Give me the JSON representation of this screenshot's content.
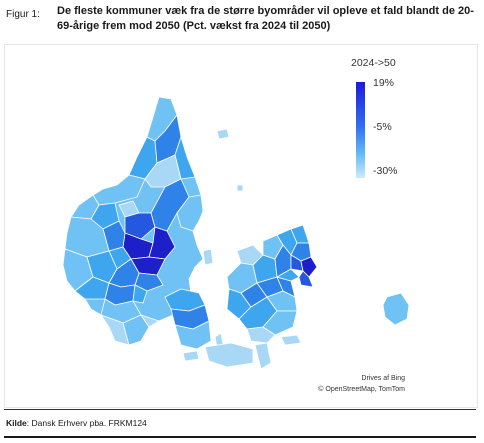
{
  "figure": {
    "label": "Figur 1:",
    "title": "De fleste kommuner væk fra de større byområder vil opleve et fald blandt de 20-69-årige frem mod 2050 (Pct. vækst fra 2024 til 2050)"
  },
  "legend": {
    "title": "2024->50",
    "max_label": "19%",
    "mid_label": "-5%",
    "min_label": "-30%",
    "scale_colors": [
      "#1d1ad6",
      "#2f6df0",
      "#63bbf5",
      "#cfeafc"
    ]
  },
  "attribution": {
    "line1": "Drives af Bing",
    "line2": "© OpenStreetMap, TomTom"
  },
  "source": {
    "label": "Kilde",
    "text": ": Dansk Erhverv pba. FRKM124"
  },
  "colors": {
    "very_light": "#a9d8f7",
    "light": "#6fc2f3",
    "medium": "#3ea6ee",
    "medium_dark": "#2f82e8",
    "dark": "#2458de",
    "darkest": "#1d20c9",
    "border": "#ffffff"
  }
}
